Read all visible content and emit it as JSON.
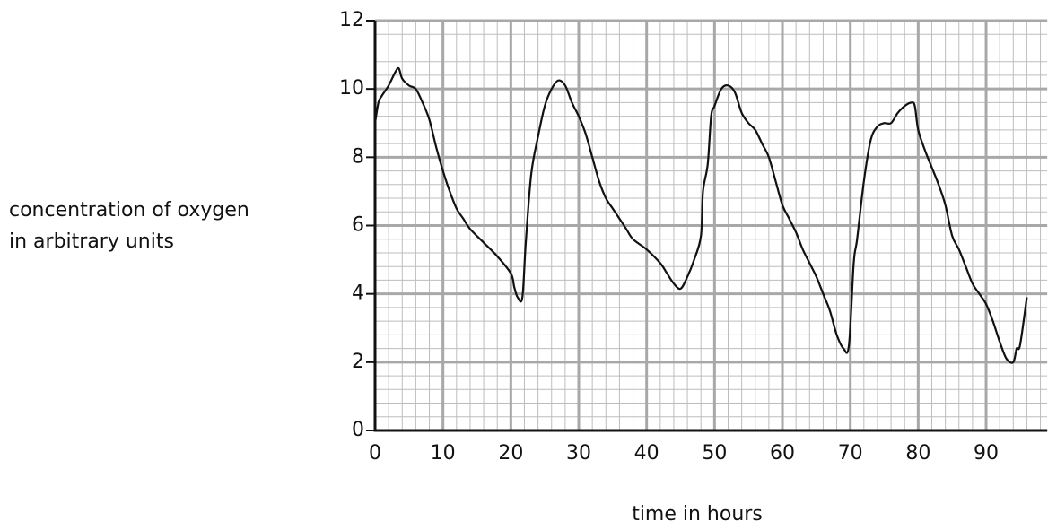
{
  "chart_data": {
    "type": "line",
    "xlabel": "time in hours",
    "ylabel": [
      "concentration of oxygen",
      "in arbitrary units"
    ],
    "x": [
      0,
      0.5,
      1,
      2,
      3,
      3.5,
      4,
      5,
      6,
      7,
      8,
      9,
      10,
      11,
      12,
      13,
      14,
      16,
      18,
      20,
      20.5,
      21,
      21.7,
      22.2,
      23,
      24,
      25,
      26,
      27,
      28,
      29,
      30,
      31,
      32,
      33,
      34,
      35,
      36,
      37,
      38,
      40,
      42,
      43,
      44,
      45,
      46,
      47,
      48,
      48.3,
      49,
      49.5,
      50,
      51,
      52,
      53,
      54,
      55,
      56,
      57,
      58,
      59,
      60,
      61,
      62,
      63,
      64,
      65,
      66,
      67,
      68,
      69,
      69.8,
      70.5,
      71,
      72,
      73,
      74,
      75,
      76,
      77,
      78,
      79,
      79.5,
      80,
      81,
      82,
      83,
      84,
      85,
      86,
      87,
      88,
      89,
      90,
      91,
      92,
      93,
      94,
      94.5,
      95,
      96
    ],
    "values": [
      9.0,
      9.6,
      9.8,
      10.1,
      10.5,
      10.6,
      10.3,
      10.1,
      10.0,
      9.6,
      9.1,
      8.3,
      7.6,
      7.0,
      6.5,
      6.2,
      5.9,
      5.5,
      5.1,
      4.6,
      4.2,
      3.9,
      3.9,
      5.5,
      7.5,
      8.6,
      9.5,
      10.0,
      10.25,
      10.1,
      9.6,
      9.2,
      8.7,
      8.0,
      7.3,
      6.8,
      6.5,
      6.2,
      5.9,
      5.6,
      5.3,
      4.9,
      4.6,
      4.3,
      4.15,
      4.5,
      5.0,
      5.7,
      7.0,
      7.8,
      9.2,
      9.5,
      10.0,
      10.1,
      9.9,
      9.3,
      9.0,
      8.8,
      8.4,
      8.0,
      7.3,
      6.6,
      6.2,
      5.8,
      5.3,
      4.9,
      4.5,
      4.0,
      3.5,
      2.8,
      2.4,
      2.5,
      4.9,
      5.6,
      7.3,
      8.5,
      8.9,
      9.0,
      9.0,
      9.3,
      9.5,
      9.6,
      9.5,
      8.8,
      8.2,
      7.7,
      7.2,
      6.6,
      5.7,
      5.3,
      4.8,
      4.3,
      4.0,
      3.7,
      3.2,
      2.6,
      2.1,
      2.0,
      2.4,
      2.5,
      3.9
    ],
    "color": "#111111",
    "xlim": [
      0,
      99
    ],
    "ylim": [
      0,
      12
    ],
    "xticks": [
      0,
      10,
      20,
      30,
      40,
      50,
      60,
      70,
      80,
      90
    ],
    "yticks": [
      0,
      2,
      4,
      6,
      8,
      10,
      12
    ],
    "grid": true
  }
}
